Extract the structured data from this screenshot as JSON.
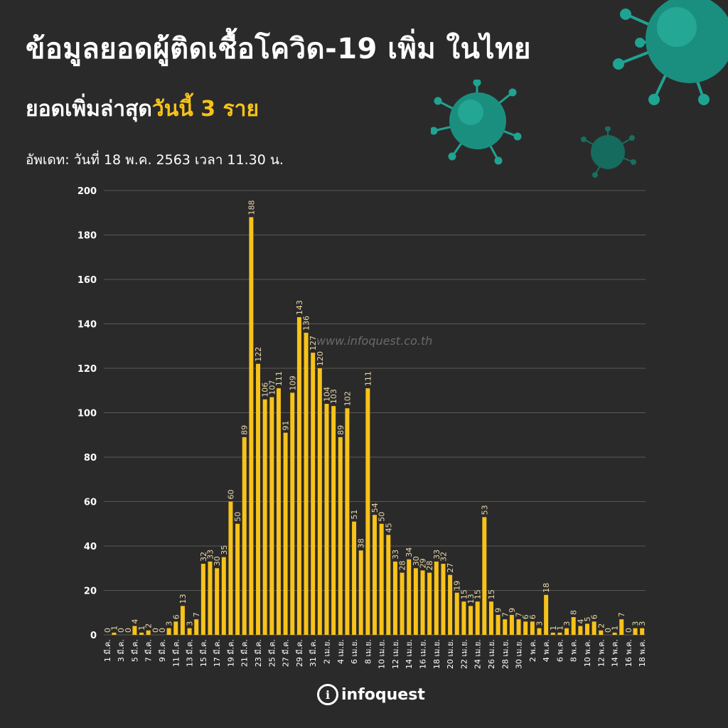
{
  "header": {
    "title": "ข้อมูลยอดผู้ติดเชื้อโควิด-19 เพิ่ม ในไทย",
    "subtitle_lead": "ยอดเพิ่มล่าสุด",
    "subtitle_highlight": "วันนี้ 3 ราย",
    "updated": "อัพเดท: วันที่ 18 พ.ค. 2563 เวลา 11.30 น."
  },
  "watermark": "www.infoquest.co.th",
  "logo": {
    "text": "infoquest",
    "icon": "info-i-icon"
  },
  "colors": {
    "background": "#2b2a2a",
    "bar": "#f7c21a",
    "accent": "#f7c21a",
    "grid": "#5a5856",
    "virus": "#1fa392"
  },
  "decoration": {
    "icon": "virus-icon"
  },
  "chart_data": {
    "type": "bar",
    "x": [
      "1 มี.ค.",
      "2 มี.ค.",
      "3 มี.ค.",
      "4 มี.ค.",
      "5 มี.ค.",
      "6 มี.ค.",
      "7 มี.ค.",
      "8 มี.ค.",
      "9 มี.ค.",
      "10 มี.ค.",
      "11 มี.ค.",
      "12 มี.ค.",
      "13 มี.ค.",
      "14 มี.ค.",
      "15 มี.ค.",
      "16 มี.ค.",
      "17 มี.ค.",
      "18 มี.ค.",
      "19 มี.ค.",
      "20 มี.ค.",
      "21 มี.ค.",
      "22 มี.ค.",
      "23 มี.ค.",
      "24 มี.ค.",
      "25 มี.ค.",
      "26 มี.ค.",
      "27 มี.ค.",
      "28 มี.ค.",
      "29 มี.ค.",
      "30 มี.ค.",
      "31 มี.ค.",
      "1 เม.ย.",
      "2 เม.ย.",
      "3 เม.ย.",
      "4 เม.ย.",
      "5 เม.ย.",
      "6 เม.ย.",
      "7 เม.ย.",
      "8 เม.ย.",
      "9 เม.ย.",
      "10 เม.ย.",
      "11 เม.ย.",
      "12 เม.ย.",
      "13 เม.ย.",
      "14 เม.ย.",
      "15 เม.ย.",
      "16 เม.ย.",
      "17 เม.ย.",
      "18 เม.ย.",
      "19 เม.ย.",
      "20 เม.ย.",
      "21 เม.ย.",
      "22 เม.ย.",
      "23 เม.ย.",
      "24 เม.ย.",
      "25 เม.ย.",
      "26 เม.ย.",
      "27 เม.ย.",
      "28 เม.ย.",
      "29 เม.ย.",
      "30 เม.ย.",
      "1 พ.ค.",
      "2 พ.ค.",
      "3 พ.ค.",
      "4 พ.ค.",
      "5 พ.ค.",
      "6 พ.ค.",
      "7 พ.ค.",
      "8 พ.ค.",
      "9 พ.ค.",
      "10 พ.ค.",
      "11 พ.ค.",
      "12 พ.ค.",
      "13 พ.ค.",
      "14 พ.ค.",
      "15 พ.ค.",
      "16 พ.ค.",
      "17 พ.ค.",
      "18 พ.ค."
    ],
    "values": [
      0,
      1,
      0,
      0,
      4,
      1,
      2,
      0,
      0,
      3,
      6,
      13,
      3,
      7,
      32,
      33,
      30,
      35,
      60,
      50,
      89,
      188,
      122,
      106,
      107,
      111,
      91,
      109,
      143,
      136,
      127,
      120,
      104,
      103,
      89,
      102,
      51,
      38,
      111,
      54,
      50,
      45,
      33,
      28,
      34,
      30,
      29,
      28,
      33,
      32,
      27,
      19,
      15,
      13,
      15,
      53,
      15,
      9,
      7,
      9,
      7,
      6,
      6,
      3,
      18,
      1,
      1,
      3,
      8,
      4,
      5,
      6,
      2,
      0,
      1,
      7,
      0,
      3,
      3
    ],
    "tick_labels": [
      "1 มี.ค.",
      "3 มี.ค.",
      "5 มี.ค.",
      "7 มี.ค.",
      "9 มี.ค.",
      "11 มี.ค.",
      "13 มี.ค.",
      "15 มี.ค.",
      "17 มี.ค.",
      "19 มี.ค.",
      "21 มี.ค.",
      "23 มี.ค.",
      "25 มี.ค.",
      "27 มี.ค.",
      "29 มี.ค.",
      "31 มี.ค.",
      "2 เม.ย.",
      "4 เม.ย.",
      "6 เม.ย.",
      "8 เม.ย.",
      "10 เม.ย.",
      "12 เม.ย.",
      "14 เม.ย.",
      "16 เม.ย.",
      "18 เม.ย.",
      "20 เม.ย.",
      "22 เม.ย.",
      "24 เม.ย.",
      "26 เม.ย.",
      "28 เม.ย.",
      "30 เม.ย.",
      "2 พ.ค.",
      "4 พ.ค.",
      "6 พ.ค.",
      "8 พ.ค.",
      "10 พ.ค.",
      "12 พ.ค.",
      "14 พ.ค.",
      "16 พ.ค.",
      "18 พ.ค."
    ],
    "y_ticks": [
      "0",
      "20",
      "40",
      "60",
      "80",
      "100",
      "120",
      "140",
      "160",
      "180",
      "200"
    ],
    "ylim": [
      0,
      200
    ],
    "grid": true,
    "data_labels": true
  }
}
